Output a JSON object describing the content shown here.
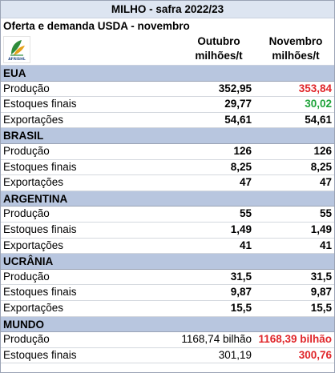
{
  "title": "MILHO - safra 2022/23",
  "subtitle": "Oferta e demanda USDA - novembro",
  "columns": {
    "col1_line1": "Outubro",
    "col1_line2": "milhões/t",
    "col2_line1": "Novembro",
    "col2_line2": "milhões/t"
  },
  "logo_text": "AFRISHL",
  "colors": {
    "section": "#b8c6df",
    "title": "#dde5f1",
    "red": "#e0262a",
    "green": "#1fa33a"
  },
  "sections": [
    {
      "name": "EUA",
      "rows": [
        {
          "label": "Produção",
          "outubro": "352,95",
          "novembro": "353,84",
          "novembro_color": "red"
        },
        {
          "label": "Estoques finais",
          "outubro": "29,77",
          "novembro": "30,02",
          "novembro_color": "green"
        },
        {
          "label": "Exportações",
          "outubro": "54,61",
          "novembro": "54,61",
          "novembro_color": "black"
        }
      ]
    },
    {
      "name": "BRASIL",
      "rows": [
        {
          "label": "Produção",
          "outubro": "126",
          "novembro": "126",
          "novembro_color": "black"
        },
        {
          "label": "Estoques finais",
          "outubro": "8,25",
          "novembro": "8,25",
          "novembro_color": "black"
        },
        {
          "label": "Exportações",
          "outubro": "47",
          "novembro": "47",
          "novembro_color": "black"
        }
      ]
    },
    {
      "name": "ARGENTINA",
      "rows": [
        {
          "label": "Produção",
          "outubro": "55",
          "novembro": "55",
          "novembro_color": "black"
        },
        {
          "label": "Estoques finais",
          "outubro": "1,49",
          "novembro": "1,49",
          "novembro_color": "black"
        },
        {
          "label": "Exportações",
          "outubro": "41",
          "novembro": "41",
          "novembro_color": "black"
        }
      ]
    },
    {
      "name": "UCRÂNIA",
      "rows": [
        {
          "label": "Produção",
          "outubro": "31,5",
          "novembro": "31,5",
          "novembro_color": "black"
        },
        {
          "label": "Estoques finais",
          "outubro": "9,87",
          "novembro": "9,87",
          "novembro_color": "black"
        },
        {
          "label": "Exportações",
          "outubro": "15,5",
          "novembro": "15,5",
          "novembro_color": "black"
        }
      ]
    },
    {
      "name": "MUNDO",
      "rows": [
        {
          "label": "Produção",
          "outubro": "1168,74 bilhão",
          "novembro": "1168,39 bilhão",
          "novembro_color": "red",
          "outubro_plain": true
        },
        {
          "label": "Estoques finais",
          "outubro": "301,19",
          "novembro": "300,76",
          "novembro_color": "red",
          "outubro_plain": true
        }
      ]
    }
  ]
}
